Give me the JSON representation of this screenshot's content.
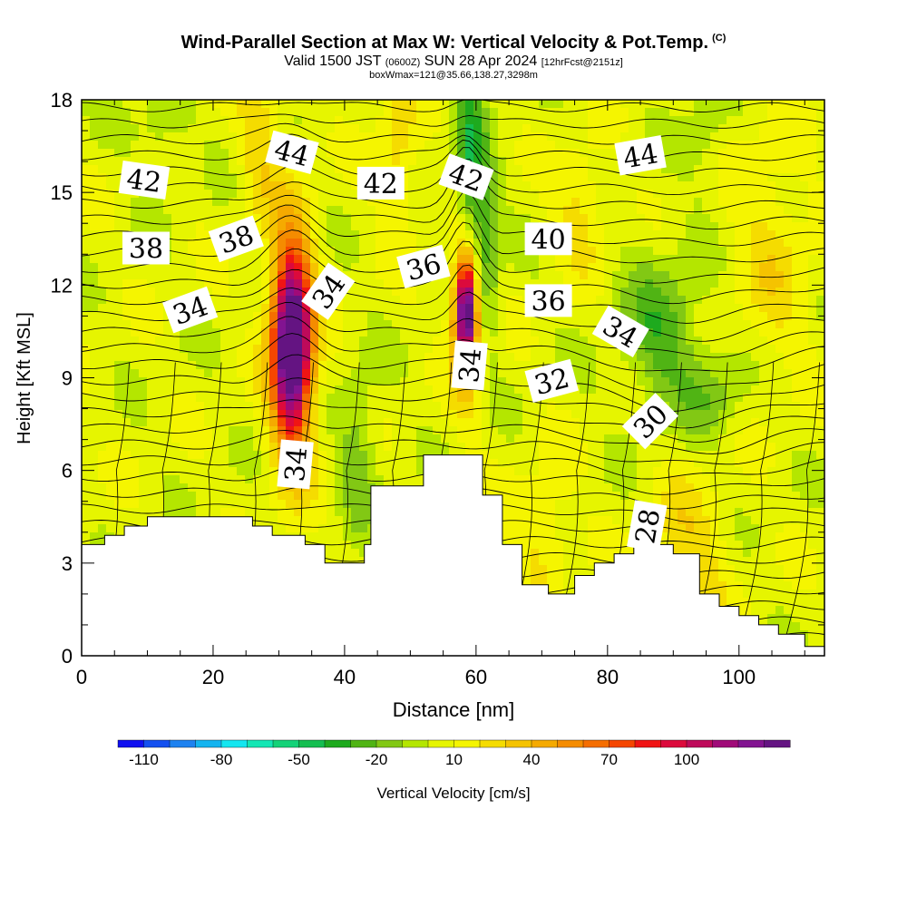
{
  "title": {
    "main": "Wind-Parallel Section at Max W: Vertical Velocity & Pot.Temp.",
    "copyright": "(C)",
    "valid_prefix": "Valid 1500 JST",
    "valid_utc": "(0600Z)",
    "valid_date": "SUN 28 Apr 2024",
    "forecast": "[12hrFcst@2151z]",
    "box": "boxWmax=121@35.66,138.27,3298m"
  },
  "chart_data": {
    "type": "heatmap",
    "xlabel": "Distance [nm]",
    "ylabel": "Height [Kft MSL]",
    "xlim": [
      0,
      113
    ],
    "ylim": [
      0,
      18
    ],
    "x_ticks": [
      "0",
      "20",
      "40",
      "60",
      "80",
      "100"
    ],
    "y_ticks": [
      "0",
      "3",
      "6",
      "9",
      "12",
      "15",
      "18"
    ],
    "colorbar": {
      "label": "Vertical Velocity [cm/s]",
      "tick_labels": [
        "-110",
        "-80",
        "-50",
        "-20",
        "10",
        "40",
        "70",
        "100"
      ],
      "colors": [
        "#1010f0",
        "#1450f0",
        "#1e82f0",
        "#14b4f0",
        "#14e6f0",
        "#14e6b4",
        "#14d278",
        "#14be50",
        "#1eaa1e",
        "#50b414",
        "#82c814",
        "#b4e600",
        "#e6f500",
        "#f5f500",
        "#f5dc00",
        "#f5c300",
        "#f5aa00",
        "#f58c00",
        "#f56e00",
        "#f54600",
        "#f01414",
        "#dc0a3c",
        "#be0a5a",
        "#a00a78",
        "#821491",
        "#641482"
      ]
    },
    "terrain": [
      [
        0,
        3.6
      ],
      [
        3.5,
        3.6
      ],
      [
        3.5,
        3.9
      ],
      [
        6.5,
        3.9
      ],
      [
        6.5,
        4.2
      ],
      [
        10,
        4.2
      ],
      [
        10,
        4.5
      ],
      [
        26,
        4.5
      ],
      [
        26,
        4.2
      ],
      [
        29,
        4.2
      ],
      [
        29,
        3.9
      ],
      [
        34,
        3.9
      ],
      [
        34,
        3.6
      ],
      [
        37,
        3.6
      ],
      [
        37,
        3
      ],
      [
        43,
        3
      ],
      [
        43,
        3.6
      ],
      [
        44,
        3.6
      ],
      [
        44,
        5.5
      ],
      [
        52,
        5.5
      ],
      [
        52,
        6.5
      ],
      [
        61,
        6.5
      ],
      [
        61,
        5.2
      ],
      [
        64,
        5.2
      ],
      [
        64,
        3.6
      ],
      [
        67,
        3.6
      ],
      [
        67,
        2.3
      ],
      [
        71,
        2.3
      ],
      [
        71,
        2
      ],
      [
        75,
        2
      ],
      [
        75,
        2.6
      ],
      [
        78,
        2.6
      ],
      [
        78,
        3
      ],
      [
        81,
        3
      ],
      [
        81,
        3.3
      ],
      [
        84,
        3.3
      ],
      [
        84,
        3.6
      ],
      [
        90,
        3.6
      ],
      [
        90,
        3.3
      ],
      [
        94,
        3.3
      ],
      [
        94,
        2
      ],
      [
        97,
        2
      ],
      [
        97,
        1.6
      ],
      [
        100,
        1.6
      ],
      [
        100,
        1.3
      ],
      [
        103,
        1.3
      ],
      [
        103,
        1
      ],
      [
        106,
        1
      ],
      [
        106,
        0.7
      ],
      [
        110,
        0.7
      ],
      [
        110,
        0.3
      ],
      [
        113,
        0.3
      ]
    ],
    "updraft_cores": [
      {
        "x": 32,
        "y": 10.1,
        "peak": 110
      },
      {
        "x": 58.5,
        "y": 11.2,
        "peak": 110
      }
    ],
    "downdraft_zones": [
      {
        "x": 59,
        "y": 16.5,
        "min": -40
      },
      {
        "x": 88,
        "y": 10.5,
        "min": -30
      },
      {
        "x": 42,
        "y": 6.5,
        "min": -20
      }
    ],
    "isentrope_labels": [
      {
        "text": "42",
        "x": 9.5,
        "y": 15.4
      },
      {
        "text": "44",
        "x": 32,
        "y": 16.3
      },
      {
        "text": "42",
        "x": 45.5,
        "y": 15.3
      },
      {
        "text": "42",
        "x": 58.5,
        "y": 15.5
      },
      {
        "text": "44",
        "x": 85,
        "y": 16.2
      },
      {
        "text": "38",
        "x": 9.8,
        "y": 13.2
      },
      {
        "text": "38",
        "x": 23.5,
        "y": 13.5
      },
      {
        "text": "40",
        "x": 71,
        "y": 13.5
      },
      {
        "text": "36",
        "x": 52,
        "y": 12.6
      },
      {
        "text": "34",
        "x": 37.5,
        "y": 11.8
      },
      {
        "text": "36",
        "x": 71,
        "y": 11.5
      },
      {
        "text": "34",
        "x": 16.5,
        "y": 11.2
      },
      {
        "text": "34",
        "x": 82,
        "y": 10.5
      },
      {
        "text": "34",
        "x": 59,
        "y": 9.4
      },
      {
        "text": "32",
        "x": 71.5,
        "y": 8.9
      },
      {
        "text": "30",
        "x": 86.5,
        "y": 7.6
      },
      {
        "text": "34",
        "x": 32.5,
        "y": 6.2
      },
      {
        "text": "28",
        "x": 86,
        "y": 4.2
      }
    ]
  }
}
